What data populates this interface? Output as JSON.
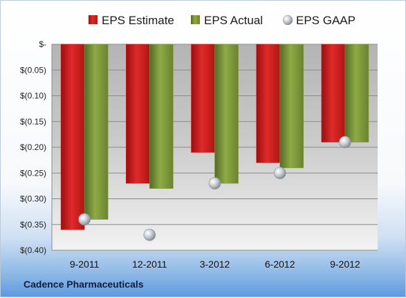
{
  "footer": {
    "company": "Cadence Pharmaceuticals"
  },
  "colors": {
    "estimate": "#d42020",
    "actual": "#7e9a3a",
    "gaap": "#b8c0c8"
  },
  "chart_data": {
    "type": "bar",
    "categories": [
      "9-2011",
      "12-2011",
      "3-2012",
      "6-2012",
      "9-2012"
    ],
    "series": [
      {
        "name": "EPS Estimate",
        "kind": "bar",
        "values": [
          -0.36,
          -0.27,
          -0.21,
          -0.23,
          -0.19
        ]
      },
      {
        "name": "EPS Actual",
        "kind": "bar",
        "values": [
          -0.34,
          -0.28,
          -0.27,
          -0.24,
          -0.19
        ]
      },
      {
        "name": "EPS GAAP",
        "kind": "marker",
        "values": [
          -0.34,
          -0.37,
          -0.27,
          -0.25,
          -0.19
        ]
      }
    ],
    "ylim": [
      -0.4,
      0
    ],
    "yticks": [
      0,
      -0.05,
      -0.1,
      -0.15,
      -0.2,
      -0.25,
      -0.3,
      -0.35,
      -0.4
    ],
    "ytick_labels": [
      "$-",
      "$(0.05)",
      "$(0.10)",
      "$(0.15)",
      "$(0.20)",
      "$(0.25)",
      "$(0.30)",
      "$(0.35)",
      "$(0.40)"
    ],
    "grid": true,
    "legend_position": "top"
  }
}
